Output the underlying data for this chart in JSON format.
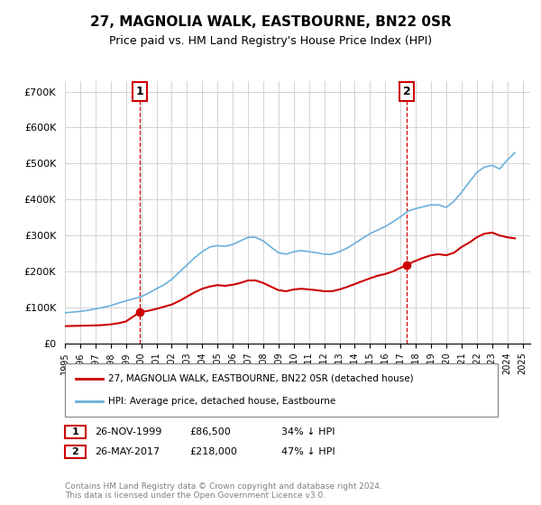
{
  "title": "27, MAGNOLIA WALK, EASTBOURNE, BN22 0SR",
  "subtitle": "Price paid vs. HM Land Registry's House Price Index (HPI)",
  "ylabel_ticks": [
    "£0",
    "£100K",
    "£200K",
    "£300K",
    "£400K",
    "£500K",
    "£600K",
    "£700K"
  ],
  "ytick_values": [
    0,
    100000,
    200000,
    300000,
    400000,
    500000,
    600000,
    700000
  ],
  "ylim": [
    0,
    730000
  ],
  "hpi_color": "#6ab0dc",
  "price_color": "#cc0000",
  "marker1_date": 1999.9,
  "marker1_price": 86500,
  "marker1_label": "1",
  "marker1_year_label": "26-NOV-1999",
  "marker1_price_label": "£86,500",
  "marker1_pct_label": "34% ↓ HPI",
  "marker2_date": 2017.4,
  "marker2_price": 218000,
  "marker2_label": "2",
  "marker2_year_label": "26-MAY-2017",
  "marker2_price_label": "£218,000",
  "marker2_pct_label": "47% ↓ HPI",
  "legend_line1": "27, MAGNOLIA WALK, EASTBOURNE, BN22 0SR (detached house)",
  "legend_line2": "HPI: Average price, detached house, Eastbourne",
  "footer": "Contains HM Land Registry data © Crown copyright and database right 2024.\nThis data is licensed under the Open Government Licence v3.0.",
  "hpi_x": [
    1995.0,
    1995.5,
    1996.0,
    1996.5,
    1997.0,
    1997.5,
    1998.0,
    1998.5,
    1999.0,
    1999.5,
    2000.0,
    2000.5,
    2001.0,
    2001.5,
    2002.0,
    2002.5,
    2003.0,
    2003.5,
    2004.0,
    2004.5,
    2005.0,
    2005.5,
    2006.0,
    2006.5,
    2007.0,
    2007.5,
    2008.0,
    2008.5,
    2009.0,
    2009.5,
    2010.0,
    2010.5,
    2011.0,
    2011.5,
    2012.0,
    2012.5,
    2013.0,
    2013.5,
    2014.0,
    2014.5,
    2015.0,
    2015.5,
    2016.0,
    2016.5,
    2017.0,
    2017.5,
    2018.0,
    2018.5,
    2019.0,
    2019.5,
    2020.0,
    2020.5,
    2021.0,
    2021.5,
    2022.0,
    2022.5,
    2023.0,
    2023.5,
    2024.0,
    2024.5
  ],
  "hpi_y": [
    85000,
    87000,
    89000,
    92000,
    96000,
    100000,
    105000,
    112000,
    118000,
    124000,
    130000,
    140000,
    152000,
    163000,
    178000,
    198000,
    218000,
    238000,
    255000,
    268000,
    272000,
    270000,
    275000,
    285000,
    295000,
    295000,
    285000,
    268000,
    252000,
    248000,
    255000,
    258000,
    255000,
    252000,
    248000,
    248000,
    255000,
    265000,
    278000,
    292000,
    305000,
    315000,
    325000,
    338000,
    352000,
    368000,
    375000,
    380000,
    385000,
    385000,
    378000,
    395000,
    420000,
    448000,
    475000,
    490000,
    495000,
    485000,
    510000,
    530000
  ],
  "price_x": [
    1995.0,
    1995.5,
    1996.0,
    1996.5,
    1997.0,
    1997.5,
    1998.0,
    1998.5,
    1999.0,
    1999.9,
    2000.5,
    2001.0,
    2001.5,
    2002.0,
    2002.5,
    2003.0,
    2003.5,
    2004.0,
    2004.5,
    2005.0,
    2005.5,
    2006.0,
    2006.5,
    2007.0,
    2007.5,
    2008.0,
    2008.5,
    2009.0,
    2009.5,
    2010.0,
    2010.5,
    2011.0,
    2011.5,
    2012.0,
    2012.5,
    2013.0,
    2013.5,
    2014.0,
    2014.5,
    2015.0,
    2015.5,
    2016.0,
    2016.5,
    2017.0,
    2017.4,
    2017.9,
    2018.5,
    2019.0,
    2019.5,
    2020.0,
    2020.5,
    2021.0,
    2021.5,
    2022.0,
    2022.5,
    2023.0,
    2023.5,
    2024.0,
    2024.5
  ],
  "price_y": [
    48000,
    48500,
    49000,
    49500,
    50000,
    51000,
    53000,
    56000,
    61000,
    86500,
    91000,
    96000,
    102000,
    108000,
    118000,
    130000,
    142000,
    152000,
    158000,
    162000,
    160000,
    163000,
    168000,
    175000,
    175000,
    168000,
    158000,
    148000,
    145000,
    150000,
    152000,
    150000,
    148000,
    145000,
    145000,
    150000,
    157000,
    165000,
    173000,
    181000,
    188000,
    193000,
    200000,
    210000,
    218000,
    228000,
    238000,
    245000,
    248000,
    245000,
    252000,
    268000,
    280000,
    295000,
    305000,
    308000,
    300000,
    295000,
    292000
  ]
}
